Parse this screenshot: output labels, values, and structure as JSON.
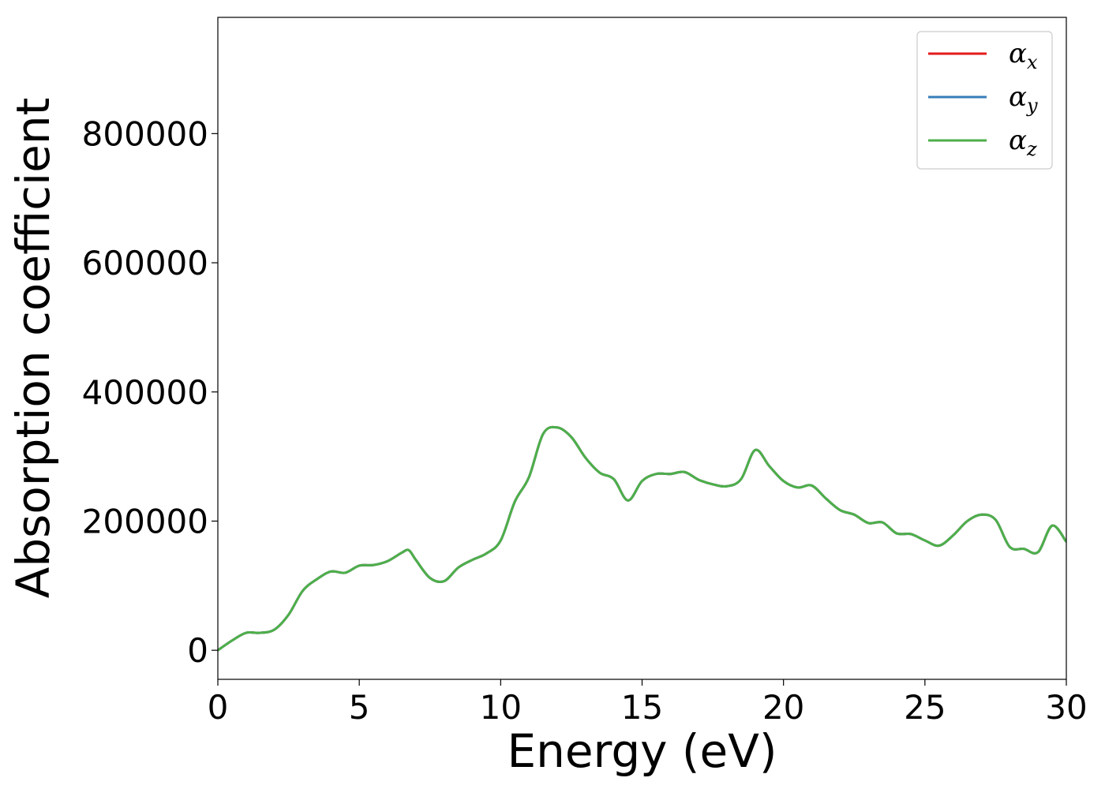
{
  "chart_data": {
    "type": "line",
    "title": "",
    "xlabel": "Energy (eV)",
    "ylabel": "Absorption coefficient",
    "xlim": [
      0,
      30
    ],
    "ylim": [
      -45000,
      980000
    ],
    "xticks": [
      0,
      5,
      10,
      15,
      20,
      25,
      30
    ],
    "yticks": [
      0,
      200000,
      400000,
      600000,
      800000
    ],
    "grid": false,
    "legend_position": "top-right",
    "x": [
      0,
      0.5,
      1,
      1.5,
      2,
      2.5,
      3,
      3.5,
      4,
      4.5,
      5,
      5.5,
      6,
      6.5,
      6.75,
      7,
      7.5,
      8,
      8.5,
      9,
      9.5,
      10,
      10.5,
      11,
      11.5,
      12,
      12.5,
      13,
      13.5,
      14,
      14.5,
      15,
      15.5,
      16,
      16.5,
      17,
      17.5,
      18,
      18.5,
      19,
      19.5,
      20,
      20.5,
      21,
      21.5,
      22,
      22.5,
      23,
      23.5,
      24,
      24.5,
      25,
      25.5,
      26,
      26.5,
      27,
      27.5,
      28,
      28.5,
      29,
      29.5,
      30
    ],
    "series": [
      {
        "name": "α",
        "subscript": "x",
        "color": "#e41a1c",
        "values": [
          0,
          15000,
          27000,
          27000,
          32000,
          55000,
          92000,
          110000,
          122000,
          120000,
          131000,
          132000,
          138000,
          151000,
          155000,
          140000,
          112000,
          107000,
          128000,
          140000,
          150000,
          170000,
          230000,
          268000,
          335000,
          345000,
          330000,
          298000,
          275000,
          265000,
          232000,
          262000,
          273000,
          273000,
          276000,
          264000,
          257000,
          254000,
          265000,
          310000,
          285000,
          262000,
          252000,
          255000,
          235000,
          217000,
          210000,
          197000,
          198000,
          181000,
          180000,
          170000,
          162000,
          178000,
          200000,
          210000,
          202000,
          160000,
          157000,
          152000,
          193000,
          168000
        ]
      },
      {
        "name": "α",
        "subscript": "y",
        "color": "#377eb8",
        "values": [
          0,
          15000,
          27000,
          27000,
          32000,
          55000,
          92000,
          110000,
          122000,
          120000,
          131000,
          132000,
          138000,
          151000,
          155000,
          140000,
          112000,
          107000,
          128000,
          140000,
          150000,
          170000,
          230000,
          268000,
          335000,
          345000,
          330000,
          298000,
          275000,
          265000,
          232000,
          262000,
          273000,
          273000,
          276000,
          264000,
          257000,
          254000,
          265000,
          310000,
          285000,
          262000,
          252000,
          255000,
          235000,
          217000,
          210000,
          197000,
          198000,
          181000,
          180000,
          170000,
          162000,
          178000,
          200000,
          210000,
          202000,
          160000,
          157000,
          152000,
          193000,
          168000
        ]
      },
      {
        "name": "α",
        "subscript": "z",
        "color": "#4daf4a",
        "values": [
          0,
          15000,
          27000,
          27000,
          32000,
          55000,
          92000,
          110000,
          122000,
          120000,
          131000,
          132000,
          138000,
          151000,
          155000,
          140000,
          112000,
          107000,
          128000,
          140000,
          150000,
          170000,
          230000,
          268000,
          335000,
          345000,
          330000,
          298000,
          275000,
          265000,
          232000,
          262000,
          273000,
          273000,
          276000,
          264000,
          257000,
          254000,
          265000,
          310000,
          285000,
          262000,
          252000,
          255000,
          235000,
          217000,
          210000,
          197000,
          198000,
          181000,
          180000,
          170000,
          162000,
          178000,
          200000,
          210000,
          202000,
          160000,
          157000,
          152000,
          193000,
          168000
        ]
      }
    ]
  }
}
